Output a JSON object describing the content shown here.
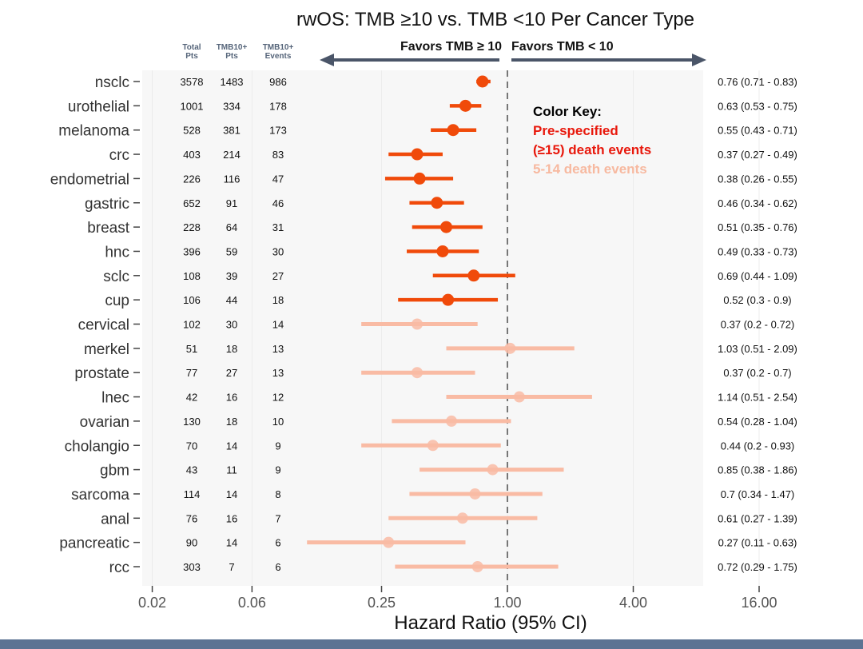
{
  "chart_data": {
    "type": "forest",
    "title": "rwOS: TMB ≥10 vs. TMB <10 Per Cancer Type",
    "xlabel": "Hazard Ratio (95% CI)",
    "x_scale": "log2",
    "xlim": [
      0.0156,
      16
    ],
    "x_ticks": [
      {
        "value": 0.02,
        "label": "0.02"
      },
      {
        "value": 0.06,
        "label": "0.06"
      },
      {
        "value": 0.25,
        "label": "0.25"
      },
      {
        "value": 1.0,
        "label": "1.00"
      },
      {
        "value": 4.0,
        "label": "4.00"
      },
      {
        "value": 16.0,
        "label": "16.00"
      }
    ],
    "reference_line": 1.0,
    "favors_left": "Favors TMB ≥ 10",
    "favors_right": "Favors TMB < 10",
    "column_headers": [
      [
        "Total",
        "Pts"
      ],
      [
        "TMB10+",
        "Pts"
      ],
      [
        "TMB10+",
        "Events"
      ]
    ],
    "color_key": {
      "title": "Color Key:",
      "prespecified_line1": "Pre-specified",
      "prespecified_line2": "(≥15) death events",
      "few_events": "5-14 death events",
      "title_color": "#000000",
      "prespecified_color": "#e8180c",
      "few_events_color": "#f7b9a0"
    },
    "colors": {
      "prespecified": "#f04a0a",
      "few_events": "#f9bba4",
      "arrow": "#4a5568",
      "reference": "#777777"
    },
    "rows": [
      {
        "name": "nsclc",
        "total": "3578",
        "tmb_pts": "1483",
        "events": "986",
        "hr": 0.76,
        "lo": 0.71,
        "hi": 0.83,
        "label": "0.76 (0.71 - 0.83)",
        "group": "prespecified"
      },
      {
        "name": "urothelial",
        "total": "1001",
        "tmb_pts": "334",
        "events": "178",
        "hr": 0.63,
        "lo": 0.53,
        "hi": 0.75,
        "label": "0.63 (0.53 - 0.75)",
        "group": "prespecified"
      },
      {
        "name": "melanoma",
        "total": "528",
        "tmb_pts": "381",
        "events": "173",
        "hr": 0.55,
        "lo": 0.43,
        "hi": 0.71,
        "label": "0.55 (0.43 - 0.71)",
        "group": "prespecified"
      },
      {
        "name": "crc",
        "total": "403",
        "tmb_pts": "214",
        "events": "83",
        "hr": 0.37,
        "lo": 0.27,
        "hi": 0.49,
        "label": "0.37 (0.27 - 0.49)",
        "group": "prespecified"
      },
      {
        "name": "endometrial",
        "total": "226",
        "tmb_pts": "116",
        "events": "47",
        "hr": 0.38,
        "lo": 0.26,
        "hi": 0.55,
        "label": "0.38 (0.26 - 0.55)",
        "group": "prespecified"
      },
      {
        "name": "gastric",
        "total": "652",
        "tmb_pts": "91",
        "events": "46",
        "hr": 0.46,
        "lo": 0.34,
        "hi": 0.62,
        "label": "0.46 (0.34 - 0.62)",
        "group": "prespecified"
      },
      {
        "name": "breast",
        "total": "228",
        "tmb_pts": "64",
        "events": "31",
        "hr": 0.51,
        "lo": 0.35,
        "hi": 0.76,
        "label": "0.51 (0.35 - 0.76)",
        "group": "prespecified"
      },
      {
        "name": "hnc",
        "total": "396",
        "tmb_pts": "59",
        "events": "30",
        "hr": 0.49,
        "lo": 0.33,
        "hi": 0.73,
        "label": "0.49 (0.33 - 0.73)",
        "group": "prespecified"
      },
      {
        "name": "sclc",
        "total": "108",
        "tmb_pts": "39",
        "events": "27",
        "hr": 0.69,
        "lo": 0.44,
        "hi": 1.09,
        "label": "0.69 (0.44 - 1.09)",
        "group": "prespecified"
      },
      {
        "name": "cup",
        "total": "106",
        "tmb_pts": "44",
        "events": "18",
        "hr": 0.52,
        "lo": 0.3,
        "hi": 0.9,
        "label": "0.52 (0.3 - 0.9)",
        "group": "prespecified"
      },
      {
        "name": "cervical",
        "total": "102",
        "tmb_pts": "30",
        "events": "14",
        "hr": 0.37,
        "lo": 0.2,
        "hi": 0.72,
        "label": "0.37 (0.2 - 0.72)",
        "group": "few"
      },
      {
        "name": "merkel",
        "total": "51",
        "tmb_pts": "18",
        "events": "13",
        "hr": 1.03,
        "lo": 0.51,
        "hi": 2.09,
        "label": "1.03 (0.51 - 2.09)",
        "group": "few"
      },
      {
        "name": "prostate",
        "total": "77",
        "tmb_pts": "27",
        "events": "13",
        "hr": 0.37,
        "lo": 0.2,
        "hi": 0.7,
        "label": "0.37 (0.2 - 0.7)",
        "group": "few"
      },
      {
        "name": "lnec",
        "total": "42",
        "tmb_pts": "16",
        "events": "12",
        "hr": 1.14,
        "lo": 0.51,
        "hi": 2.54,
        "label": "1.14 (0.51 - 2.54)",
        "group": "few"
      },
      {
        "name": "ovarian",
        "total": "130",
        "tmb_pts": "18",
        "events": "10",
        "hr": 0.54,
        "lo": 0.28,
        "hi": 1.04,
        "label": "0.54 (0.28 - 1.04)",
        "group": "few"
      },
      {
        "name": "cholangio",
        "total": "70",
        "tmb_pts": "14",
        "events": "9",
        "hr": 0.44,
        "lo": 0.2,
        "hi": 0.93,
        "label": "0.44 (0.2 - 0.93)",
        "group": "few"
      },
      {
        "name": "gbm",
        "total": "43",
        "tmb_pts": "11",
        "events": "9",
        "hr": 0.85,
        "lo": 0.38,
        "hi": 1.86,
        "label": "0.85 (0.38 - 1.86)",
        "group": "few"
      },
      {
        "name": "sarcoma",
        "total": "114",
        "tmb_pts": "14",
        "events": "8",
        "hr": 0.7,
        "lo": 0.34,
        "hi": 1.47,
        "label": "0.7 (0.34 - 1.47)",
        "group": "few"
      },
      {
        "name": "anal",
        "total": "76",
        "tmb_pts": "16",
        "events": "7",
        "hr": 0.61,
        "lo": 0.27,
        "hi": 1.39,
        "label": "0.61 (0.27 - 1.39)",
        "group": "few"
      },
      {
        "name": "pancreatic",
        "total": "90",
        "tmb_pts": "14",
        "events": "6",
        "hr": 0.27,
        "lo": 0.11,
        "hi": 0.63,
        "label": "0.27 (0.11 - 0.63)",
        "group": "few"
      },
      {
        "name": "rcc",
        "total": "303",
        "tmb_pts": "7",
        "events": "6",
        "hr": 0.72,
        "lo": 0.29,
        "hi": 1.75,
        "label": "0.72 (0.29 - 1.75)",
        "group": "few"
      }
    ]
  }
}
